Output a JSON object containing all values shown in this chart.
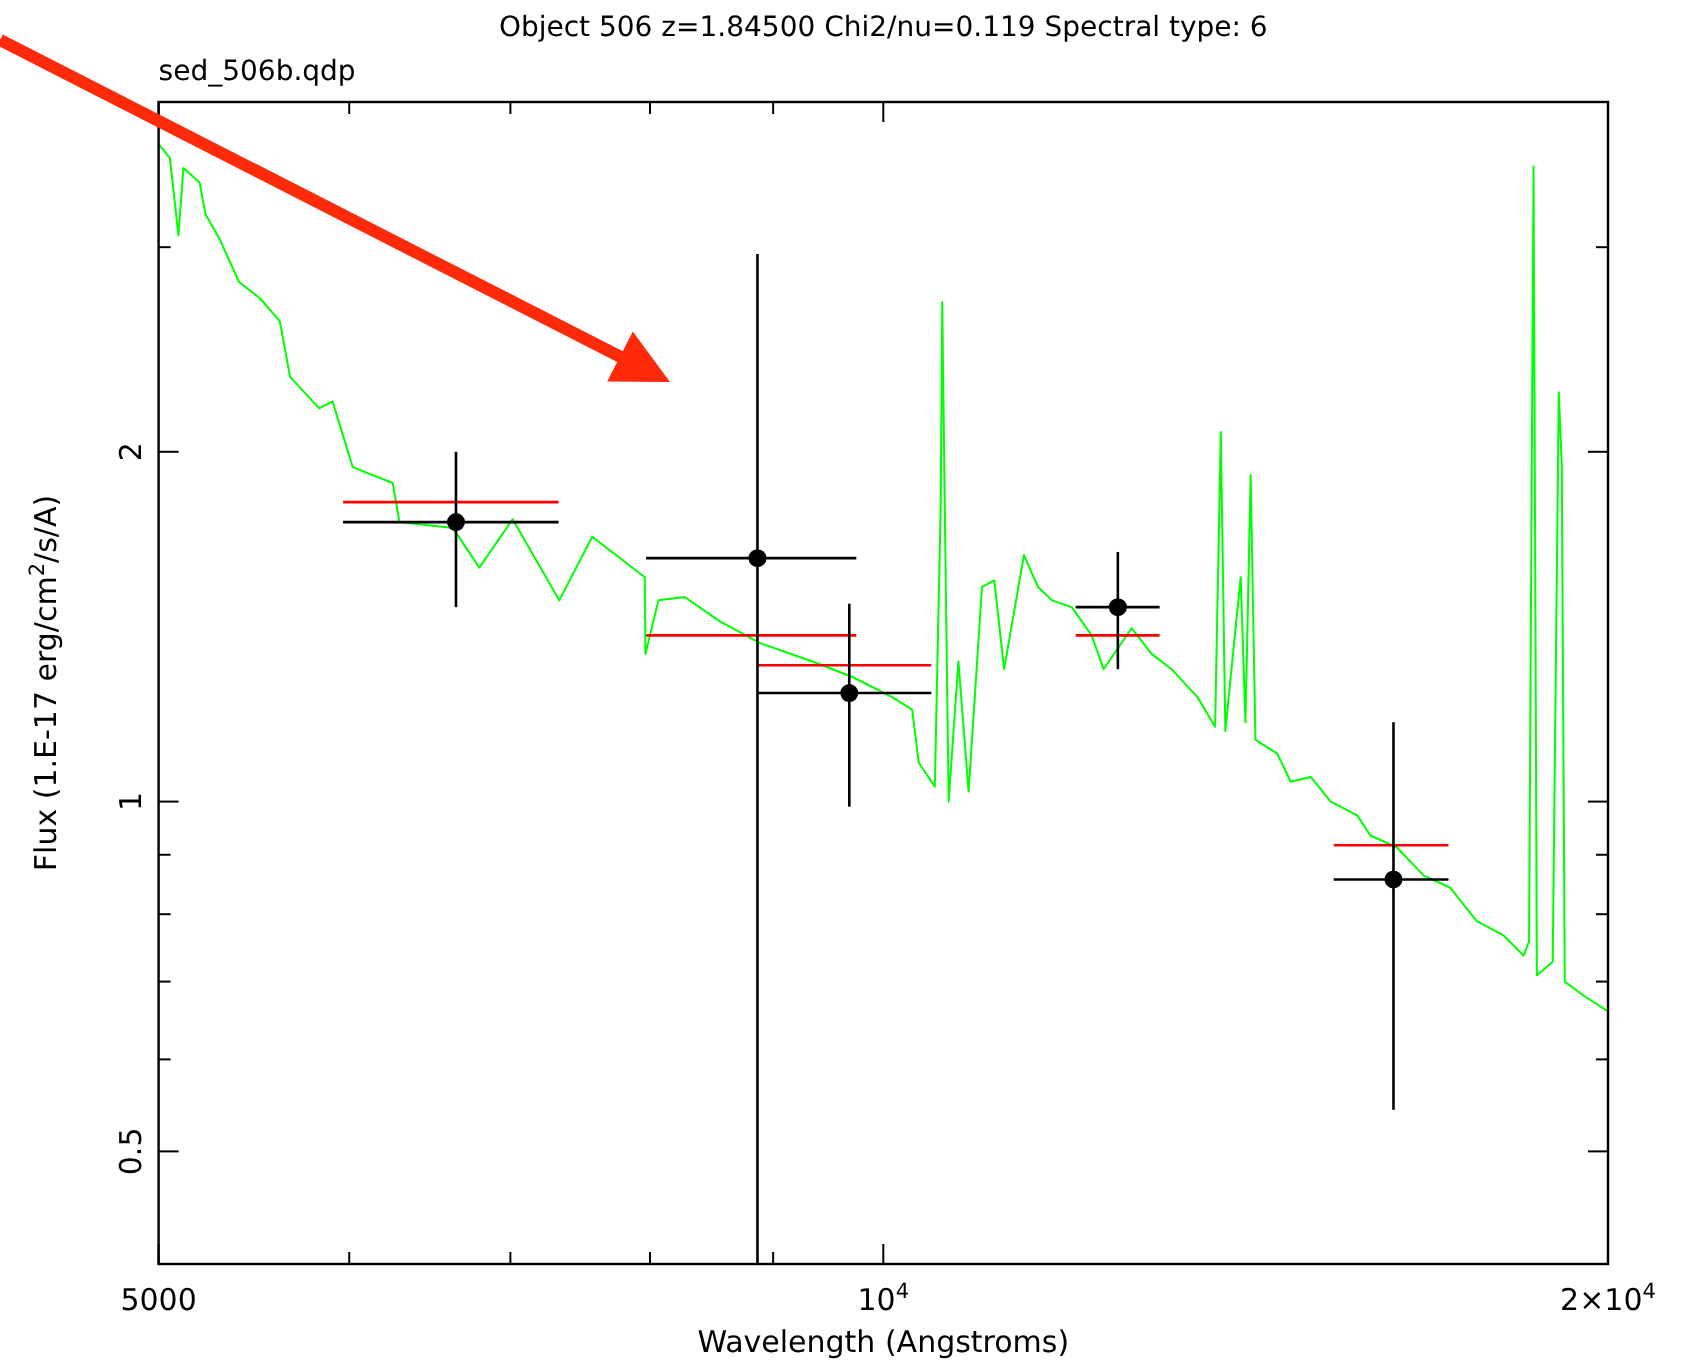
{
  "chart_data": {
    "type": "line",
    "title": "Object 506 z=1.84500 Chi2/nu=0.119 Spectral type: 6",
    "subtitle": "sed_506b.qdp",
    "xlabel": "Wavelength (Angstroms)",
    "ylabel": "Flux (1.E-17 erg/cm$^{2}$/s/A)",
    "log": "xy",
    "xlim": [
      5000,
      20000
    ],
    "ylim": [
      0.4,
      4
    ],
    "xticks": [
      5000,
      {
        "value": 6000,
        "label": null
      },
      {
        "value": 7000,
        "label": null
      },
      {
        "value": 8000,
        "label": null
      },
      {
        "value": 9000,
        "label": null
      },
      {
        "value": 10000,
        "label": "10$^{4}$"
      },
      {
        "value": 20000,
        "label": "2×10$^{4}$"
      }
    ],
    "yticks": [
      0.5,
      {
        "value": 0.6,
        "label": null
      },
      {
        "value": 0.7,
        "label": null
      },
      {
        "value": 0.8,
        "label": null
      },
      {
        "value": 0.9,
        "label": null
      },
      1,
      2,
      {
        "value": 3,
        "label": null
      }
    ],
    "series": [
      {
        "color": "#00ff00",
        "marker": "none",
        "x": [
          5000,
          5054,
          5096,
          5120,
          5200,
          5230,
          5300,
          5400,
          5510,
          5615,
          5670,
          5830,
          5905,
          6020,
          6255,
          6295,
          6625,
          6795,
          7015,
          7335,
          7570,
          7960,
          7965,
          8065,
          8270,
          8550,
          8880,
          9345,
          9710,
          10085,
          10280,
          10345,
          10505,
          10565,
          10580,
          10605,
          10645,
          10745,
          10850,
          10990,
          11120,
          11225,
          11440,
          11595,
          11750,
          11975,
          12205,
          12345,
          12680,
          12925,
          13175,
          13505,
          13735,
          13810,
          13870,
          14075,
          14140,
          14210,
          14275,
          14575,
          14765,
          15050,
          15340,
          15735,
          15935,
          16345,
          16765,
          17200,
          17640,
          18100,
          18450,
          18545,
          18625,
          18685,
          18970,
          19080,
          19135,
          19190,
          19535,
          20000
        ],
        "values": [
          3.68,
          3.58,
          3.07,
          3.51,
          3.41,
          3.2,
          3.05,
          2.8,
          2.71,
          2.59,
          2.32,
          2.18,
          2.21,
          1.94,
          1.88,
          1.74,
          1.72,
          1.59,
          1.75,
          1.49,
          1.69,
          1.56,
          1.34,
          1.49,
          1.5,
          1.43,
          1.37,
          1.32,
          1.28,
          1.23,
          1.2,
          1.08,
          1.03,
          1.81,
          2.69,
          1.81,
          1.0,
          1.32,
          1.02,
          1.53,
          1.55,
          1.3,
          1.63,
          1.53,
          1.49,
          1.47,
          1.39,
          1.3,
          1.41,
          1.34,
          1.3,
          1.23,
          1.16,
          2.08,
          1.15,
          1.56,
          1.17,
          1.91,
          1.13,
          1.1,
          1.04,
          1.05,
          1.0,
          0.973,
          0.935,
          0.913,
          0.864,
          0.843,
          0.789,
          0.767,
          0.737,
          0.758,
          3.52,
          0.709,
          0.728,
          2.25,
          1.95,
          0.7,
          0.681,
          0.66
        ]
      },
      {
        "color": "#ff0000",
        "marker": "none",
        "x": [
          5965,
          7330
        ],
        "values": [
          1.81,
          1.81
        ]
      },
      {
        "color": "#ff0000",
        "marker": "none",
        "x": [
          7970,
          9745
        ],
        "values": [
          1.39,
          1.39
        ]
      },
      {
        "color": "#ff0000",
        "marker": "none",
        "x": [
          8866,
          10470
        ],
        "values": [
          1.31,
          1.31
        ]
      },
      {
        "color": "#ff0000",
        "marker": "none",
        "x": [
          12020,
          13025
        ],
        "values": [
          1.39,
          1.39
        ]
      },
      {
        "color": "#ff0000",
        "marker": "none",
        "x": [
          15385,
          17170
        ],
        "values": [
          0.917,
          0.917
        ]
      },
      {
        "type": "scatter",
        "color": "#000000",
        "marker": "circle",
        "x": [
          6645,
          8866,
          9680,
          12515,
          16290
        ],
        "values": [
          1.74,
          1.62,
          1.24,
          1.47,
          0.857
        ],
        "xerrors": [
          [
            5965,
            7330
          ],
          [
            7970,
            9745
          ],
          [
            8866,
            10470
          ],
          [
            12020,
            13025
          ],
          [
            15385,
            17170
          ]
        ],
        "errors": [
          [
            1.47,
            2.0
          ],
          [
            0.4,
            2.96
          ],
          [
            0.99,
            1.48
          ],
          [
            1.3,
            1.64
          ],
          [
            0.543,
            1.17
          ]
        ]
      }
    ]
  }
}
